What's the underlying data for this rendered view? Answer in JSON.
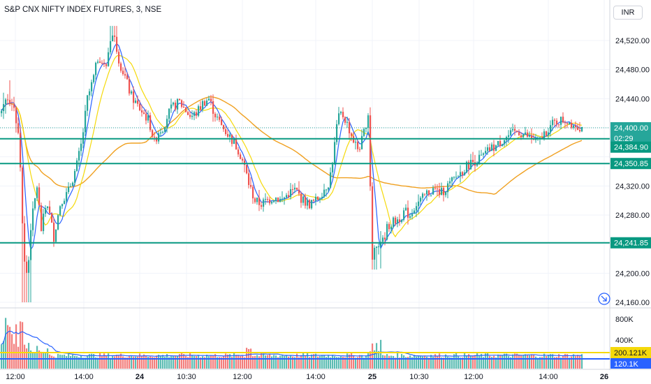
{
  "header": {
    "title": "S&P CNX NIFTY INDEX FUTURES, 3, NSE",
    "currency": "INR"
  },
  "colors": {
    "up": "#26a69a",
    "down": "#ef5350",
    "ma_fast": "#2962ff",
    "ma_mid": "#f5d90a",
    "ma_slow": "#f0a020",
    "level": "#089981",
    "volume_avg": "#f5d90a"
  },
  "chart_data": {
    "type": "candlestick",
    "timeframe": "3",
    "price_axis": {
      "ticks": [
        "24,520.00",
        "24,480.00",
        "24,440.00",
        "24,400.00",
        "24,360.00",
        "24,320.00",
        "24,280.00",
        "24,240.00",
        "24,200.00",
        "24,160.00"
      ],
      "range": [
        24160,
        24545
      ]
    },
    "time_axis": {
      "ticks": [
        "12:00",
        "14:00",
        "24",
        "10:30",
        "12:00",
        "14:00",
        "25",
        "10:30",
        "12:00",
        "14:00",
        "26"
      ]
    },
    "last_price": {
      "value": "24,400.00",
      "countdown": "02:29"
    },
    "levels": [
      {
        "label": "24,384.90",
        "value": 24384.9
      },
      {
        "label": "24,350.85",
        "value": 24350.85
      },
      {
        "label": "24,241.85",
        "value": 24241.85
      }
    ],
    "volume_axis": {
      "ticks": [
        "800K",
        "400K"
      ],
      "range": [
        0,
        1000000
      ]
    },
    "volume_labels": {
      "avg": "200.121K",
      "last": "120.1K"
    },
    "ohlc_approx": [
      {
        "x": "12:00",
        "o": 24440,
        "h": 24460,
        "l": 24160,
        "c": 24200
      },
      {
        "x": "14:00",
        "o": 24360,
        "h": 24545,
        "l": 24330,
        "c": 24495
      },
      {
        "x": "24 10:30",
        "o": 24400,
        "h": 24460,
        "l": 24370,
        "c": 24440
      },
      {
        "x": "24 12:00",
        "o": 24330,
        "h": 24350,
        "l": 24280,
        "c": 24300
      },
      {
        "x": "24 14:00",
        "o": 24310,
        "h": 24450,
        "l": 24290,
        "c": 24420
      },
      {
        "x": "25 10:30",
        "o": 24220,
        "h": 24300,
        "l": 24205,
        "c": 24290
      },
      {
        "x": "25 12:00",
        "o": 24300,
        "h": 24390,
        "l": 24290,
        "c": 24380
      },
      {
        "x": "25 14:00",
        "o": 24390,
        "h": 24425,
        "l": 24385,
        "c": 24400
      }
    ]
  }
}
